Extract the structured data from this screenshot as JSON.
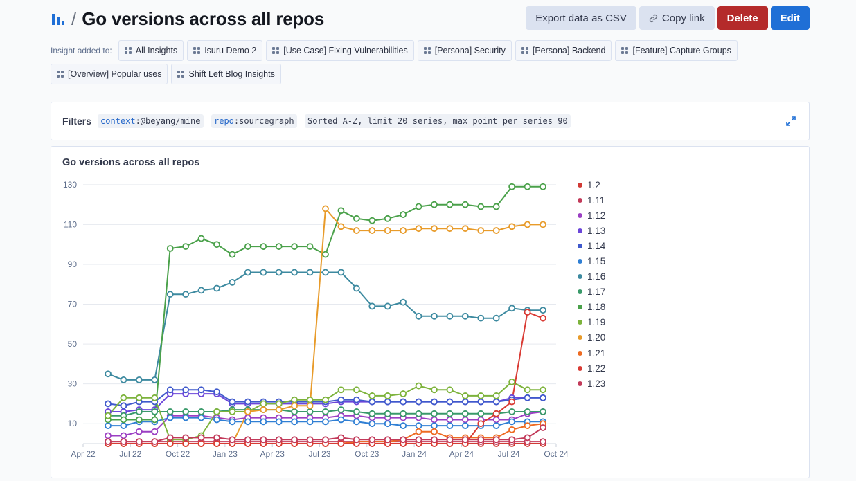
{
  "header": {
    "title": "Go versions across all repos",
    "slash": "/",
    "buttons": {
      "export": "Export data as CSV",
      "copy": "Copy link",
      "delete": "Delete",
      "edit": "Edit"
    }
  },
  "insight_tags": {
    "label": "Insight added to:",
    "row1": [
      "All Insights",
      "Isuru Demo 2",
      "[Use Case] Fixing Vulnerabilities",
      "[Persona] Security",
      "[Persona] Backend",
      "[Feature] Capture Groups"
    ],
    "row2": [
      "[Overview] Popular uses",
      "Shift Left Blog Insights"
    ]
  },
  "filters": {
    "label": "Filters",
    "context_key": "context",
    "context_value": ":@beyang/mine",
    "repo_key": "repo",
    "repo_value": ":sourcegraph",
    "settings": "Sorted A-Z, limit 20 series, max point per series 90"
  },
  "colors": {
    "primary": "#1f6fd6",
    "danger": "#b42a2a",
    "secondary": "#dbe2f0"
  },
  "chart_data": {
    "type": "line",
    "title": "Go versions across all repos",
    "x_ticks": [
      "Apr 22",
      "Jul 22",
      "Oct 22",
      "Jan 23",
      "Apr 23",
      "Jul 23",
      "Oct 23",
      "Jan 24",
      "Apr 24",
      "Jul 24",
      "Oct 24"
    ],
    "y_ticks": [
      10,
      30,
      50,
      70,
      90,
      110,
      130
    ],
    "ylim": [
      0,
      131
    ],
    "grid": true,
    "legend_placement": "right",
    "n_points": 29,
    "series": [
      {
        "name": "1.2",
        "color": "#d13a35",
        "values": [
          0,
          0,
          0,
          0,
          0,
          0,
          0,
          0,
          0,
          0,
          0,
          0,
          0,
          0,
          0,
          0,
          0,
          0,
          0,
          0,
          0,
          0,
          0,
          0,
          0,
          0,
          0,
          0,
          0
        ]
      },
      {
        "name": "1.11",
        "color": "#c23a5a",
        "values": [
          1,
          1,
          1,
          1,
          1,
          1,
          1,
          1,
          1,
          1,
          1,
          1,
          1,
          1,
          1,
          1,
          1,
          1,
          1,
          1,
          1,
          1,
          1,
          1,
          1,
          1,
          1,
          1,
          1
        ]
      },
      {
        "name": "1.12",
        "color": "#9b3fc3",
        "values": [
          4,
          4,
          6,
          6,
          14,
          14,
          14,
          13,
          12,
          13,
          13,
          13,
          13,
          13,
          13,
          14,
          14,
          13,
          13,
          13,
          13,
          12,
          12,
          12,
          12,
          12,
          12,
          15,
          16
        ]
      },
      {
        "name": "1.13",
        "color": "#6b46d9",
        "values": [
          16,
          16,
          17,
          17,
          25,
          25,
          25,
          25,
          20,
          20,
          20,
          20,
          20,
          20,
          20,
          21,
          21,
          21,
          21,
          21,
          21,
          21,
          21,
          21,
          21,
          21,
          23,
          23,
          23
        ]
      },
      {
        "name": "1.14",
        "color": "#3f59cc",
        "values": [
          20,
          19,
          21,
          21,
          27,
          27,
          27,
          26,
          21,
          21,
          21,
          21,
          21,
          21,
          21,
          22,
          22,
          21,
          21,
          21,
          21,
          21,
          21,
          21,
          21,
          21,
          22,
          23,
          23
        ]
      },
      {
        "name": "1.15",
        "color": "#2f7fd4",
        "values": [
          9,
          9,
          11,
          11,
          13,
          13,
          13,
          12,
          11,
          11,
          11,
          11,
          11,
          11,
          11,
          12,
          11,
          10,
          10,
          9,
          9,
          9,
          9,
          9,
          9,
          9,
          11,
          11,
          11
        ]
      },
      {
        "name": "1.16",
        "color": "#3d8aa0",
        "values": [
          35,
          32,
          32,
          32,
          75,
          75,
          77,
          78,
          81,
          86,
          86,
          86,
          86,
          86,
          86,
          86,
          78,
          69,
          69,
          71,
          64,
          64,
          64,
          64,
          63,
          63,
          68,
          67,
          67
        ]
      },
      {
        "name": "1.17",
        "color": "#3a9a6a",
        "values": [
          14,
          14,
          16,
          16,
          16,
          16,
          16,
          16,
          17,
          17,
          17,
          17,
          16,
          16,
          16,
          17,
          16,
          15,
          15,
          15,
          15,
          15,
          15,
          15,
          15,
          15,
          16,
          16,
          16
        ]
      },
      {
        "name": "1.18",
        "color": "#4aa14a",
        "values": [
          12,
          12,
          12,
          12,
          98,
          99,
          103,
          100,
          95,
          99,
          99,
          99,
          99,
          99,
          95,
          117,
          113,
          112,
          113,
          115,
          119,
          120,
          120,
          120,
          119,
          119,
          129,
          129,
          129
        ]
      },
      {
        "name": "1.19",
        "color": "#7db33c",
        "values": [
          14,
          23,
          23,
          23,
          2,
          2,
          4,
          16,
          16,
          16,
          20,
          20,
          22,
          22,
          22,
          27,
          27,
          24,
          24,
          25,
          29,
          27,
          27,
          24,
          24,
          24,
          31,
          27,
          27
        ]
      },
      {
        "name": "1.20",
        "color": "#e89b2a",
        "values": [
          0,
          0,
          0,
          0,
          0,
          0,
          0,
          0,
          0,
          16,
          17,
          17,
          19,
          19,
          118,
          109,
          107,
          107,
          107,
          107,
          108,
          108,
          108,
          108,
          107,
          107,
          109,
          110,
          110
        ]
      },
      {
        "name": "1.21",
        "color": "#ee6b22",
        "values": [
          0,
          0,
          0,
          0,
          0,
          0,
          0,
          0,
          0,
          0,
          0,
          0,
          0,
          0,
          0,
          0,
          1,
          1,
          1,
          2,
          6,
          6,
          3,
          3,
          3,
          3,
          7,
          9,
          10
        ]
      },
      {
        "name": "1.22",
        "color": "#d93b34",
        "values": [
          0,
          0,
          0,
          0,
          0,
          0,
          0,
          0,
          0,
          0,
          0,
          0,
          0,
          0,
          0,
          0,
          0,
          0,
          0,
          0,
          0,
          0,
          0,
          0,
          10,
          15,
          21,
          66,
          63
        ]
      },
      {
        "name": "1.23",
        "color": "#c23a5a",
        "values": [
          1,
          1,
          1,
          1,
          3,
          3,
          3,
          3,
          2,
          2,
          2,
          2,
          2,
          2,
          2,
          3,
          2,
          2,
          2,
          2,
          2,
          2,
          2,
          2,
          2,
          2,
          2,
          3,
          8
        ]
      }
    ]
  }
}
